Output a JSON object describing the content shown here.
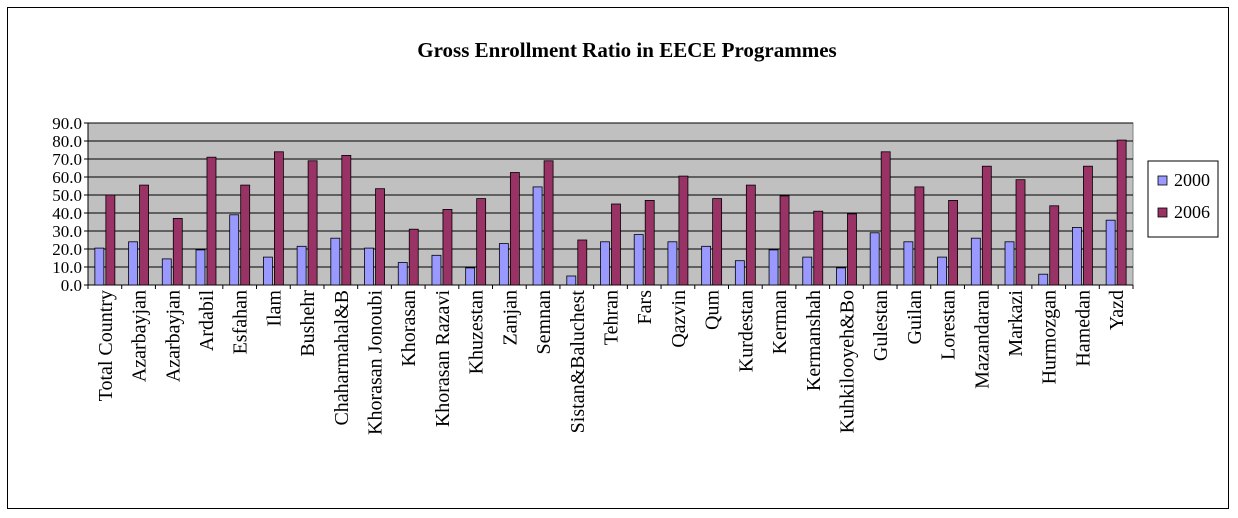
{
  "chart_data": {
    "type": "bar",
    "title": "Gross Enrollment Ratio in EECE Programmes",
    "xlabel": "",
    "ylabel": "",
    "ylim": [
      0,
      90
    ],
    "yticks": [
      "0.0",
      "10.0",
      "20.0",
      "30.0",
      "40.0",
      "50.0",
      "60.0",
      "70.0",
      "80.0",
      "90.0"
    ],
    "grid": true,
    "legend_position": "right",
    "plot_background": "#c0c0c0",
    "categories": [
      "Total Country",
      "Azarbayjan",
      "Azarbayjan",
      "Ardabil",
      "Esfahan",
      "Ilam",
      "Bushehr",
      "Chaharmahal&B",
      "Khorasan Jonoubi",
      "Khorasan",
      "Khorasan Razavi",
      "Khuzestan",
      "Zanjan",
      "Semnan",
      "Sistan&Baluchest",
      "Tehran",
      "Fars",
      "Qazvin",
      "Qum",
      "Kurdestan",
      "Kerman",
      "Kermanshah",
      "Kuhkilooyeh&Bo",
      "Gulestan",
      "Guilan",
      "Lorestan",
      "Mazandaran",
      "Markazi",
      "Hurmozgan",
      "Hamedan",
      "Yazd"
    ],
    "series": [
      {
        "name": "2000",
        "color": "#9999ff",
        "values": [
          20.5,
          24,
          14.5,
          19.5,
          39,
          15.5,
          21.5,
          26,
          20.5,
          12.5,
          16.5,
          9.5,
          23,
          54.5,
          5,
          24,
          28,
          24,
          21.5,
          13.5,
          19.5,
          15.5,
          9.5,
          29,
          24,
          15.5,
          26,
          24,
          6,
          32,
          36
        ]
      },
      {
        "name": "2006",
        "color": "#993366",
        "values": [
          50,
          55.5,
          37,
          71,
          55.5,
          74,
          69,
          72,
          53.5,
          31,
          42,
          48,
          62.5,
          69,
          25,
          45,
          47,
          60.5,
          48,
          55.5,
          49.5,
          41,
          39.5,
          74,
          54.5,
          47,
          66,
          58.5,
          44,
          66,
          80.5
        ]
      }
    ]
  }
}
